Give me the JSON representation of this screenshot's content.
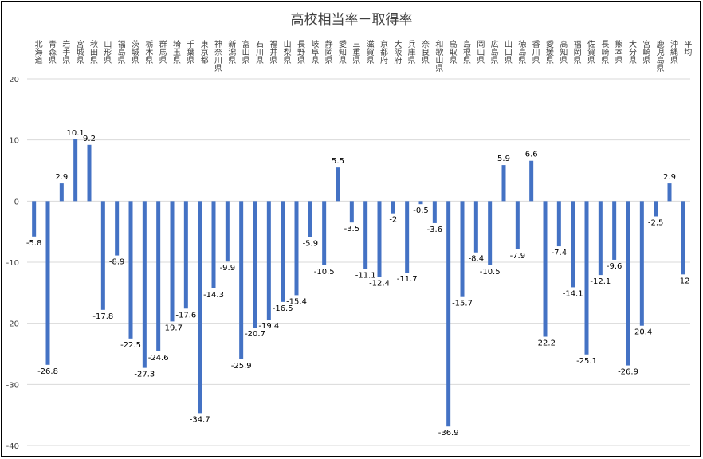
{
  "chart_data": {
    "type": "bar",
    "title": "高校相当率－取得率",
    "xlabel": "",
    "ylabel": "",
    "ylim": [
      -40,
      20
    ],
    "yticks": [
      20,
      10,
      0,
      -10,
      -20,
      -30,
      -40
    ],
    "grid": true,
    "legend": "none",
    "bar_color": "#4472C4",
    "categories": [
      "北海道",
      "青森県",
      "岩手県",
      "宮城県",
      "秋田県",
      "山形県",
      "福島県",
      "茨城県",
      "栃木県",
      "群馬県",
      "埼玉県",
      "千葉県",
      "東京都",
      "神奈川県",
      "新潟県",
      "富山県",
      "石川県",
      "福井県",
      "山梨県",
      "長野県",
      "岐阜県",
      "静岡県",
      "愛知県",
      "三重県",
      "滋賀県",
      "京都府",
      "大阪府",
      "兵庫県",
      "奈良県",
      "和歌山県",
      "鳥取県",
      "島根県",
      "岡山県",
      "広島県",
      "山口県",
      "徳島県",
      "香川県",
      "愛媛県",
      "高知県",
      "福岡県",
      "佐賀県",
      "長崎県",
      "熊本県",
      "大分県",
      "宮崎県",
      "鹿児島県",
      "沖縄県",
      "平均"
    ],
    "values": [
      -5.8,
      -26.8,
      2.9,
      10.1,
      9.2,
      -17.8,
      -8.9,
      -22.5,
      -27.3,
      -24.6,
      -19.7,
      -17.6,
      -34.7,
      -14.3,
      -9.9,
      -25.9,
      -20.7,
      -19.4,
      -16.5,
      -15.4,
      -5.9,
      -10.5,
      5.5,
      -3.5,
      -11.1,
      -12.4,
      -2,
      -11.7,
      -0.5,
      -3.6,
      -36.9,
      -15.7,
      -8.4,
      -10.5,
      5.9,
      -7.9,
      6.6,
      -22.2,
      -7.4,
      -14.1,
      -25.1,
      -12.1,
      -9.6,
      -26.9,
      -20.4,
      -2.5,
      2.9,
      -12
    ]
  }
}
